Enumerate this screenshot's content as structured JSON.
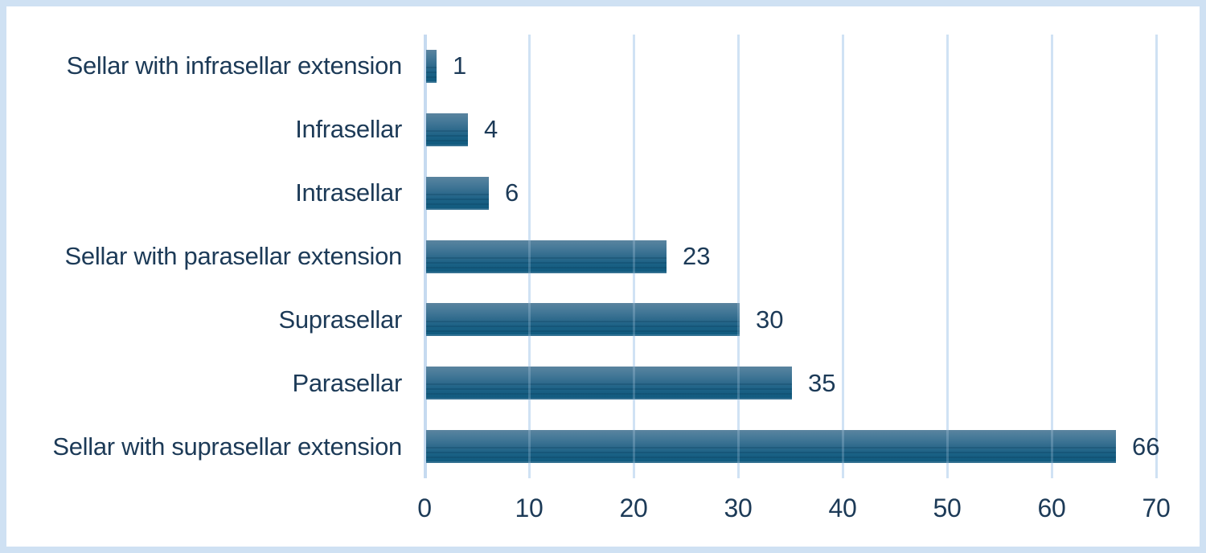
{
  "chart_data": {
    "type": "bar",
    "orientation": "horizontal",
    "title": "",
    "xlabel": "",
    "ylabel": "",
    "categories": [
      "Sellar with infrasellar extension",
      "Infrasellar",
      "Intrasellar",
      "Sellar with parasellar extension",
      "Suprasellar",
      "Parasellar",
      "Sellar with suprasellar extension"
    ],
    "values": [
      1,
      4,
      6,
      23,
      30,
      35,
      66
    ],
    "data_labels": [
      "1",
      "4",
      "6",
      "23",
      "30",
      "35",
      "66"
    ],
    "x_ticks": [
      "0",
      "10",
      "20",
      "30",
      "40",
      "50",
      "60",
      "70"
    ],
    "xlim": [
      0,
      70
    ],
    "grid": true,
    "legend": "none",
    "colors": {
      "bar_gradient_top": "#5a849f",
      "bar_gradient_bottom": "#115a7e",
      "bar_streak": "#0a3e5c",
      "text": "#1c3a57",
      "gridline": "#cfe1f3",
      "frame_border": "#cfe1f3",
      "plot_background": "#ffffff"
    }
  }
}
